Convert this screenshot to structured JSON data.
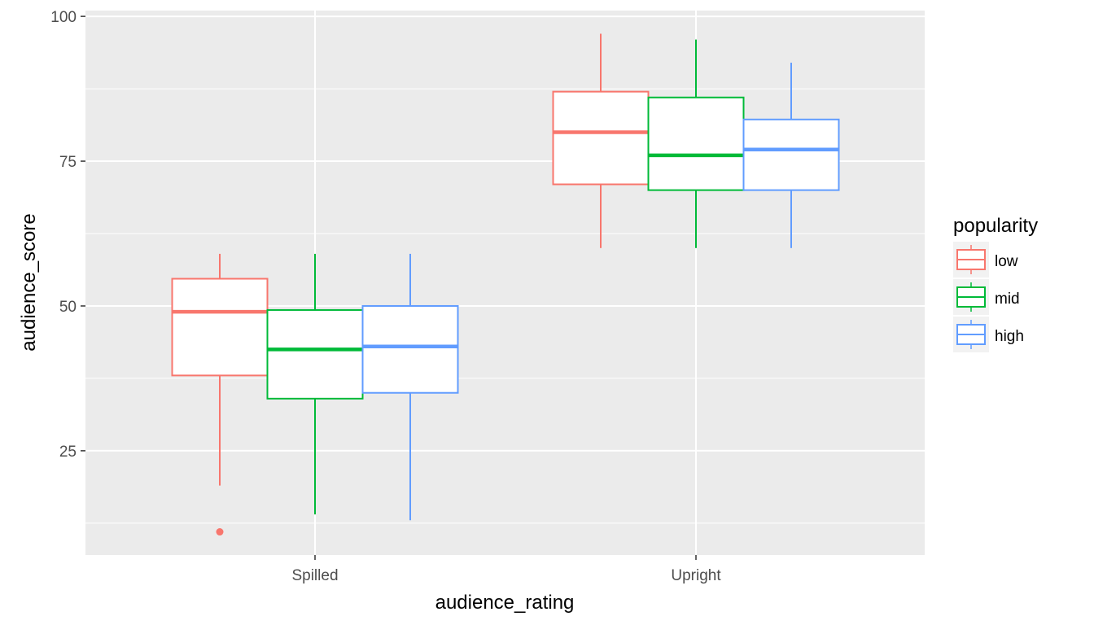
{
  "chart_data": {
    "type": "boxplot",
    "xlabel": "audience_rating",
    "ylabel": "audience_score",
    "categories": [
      "Spilled",
      "Upright"
    ],
    "ylim": [
      7,
      101
    ],
    "yticks": [
      25,
      50,
      75,
      100
    ],
    "grid": true,
    "legend": {
      "title": "popularity",
      "placement": "right"
    },
    "series": [
      {
        "name": "low",
        "color": "#F8766D",
        "boxes": [
          {
            "category": "Spilled",
            "min": 19,
            "q1": 38,
            "median": 49,
            "q3": 54.7,
            "max": 59,
            "outliers": [
              11
            ]
          },
          {
            "category": "Upright",
            "min": 60,
            "q1": 71,
            "median": 80,
            "q3": 87,
            "max": 97,
            "outliers": []
          }
        ]
      },
      {
        "name": "mid",
        "color": "#00BA38",
        "boxes": [
          {
            "category": "Spilled",
            "min": 14,
            "q1": 34,
            "median": 42.5,
            "q3": 49.3,
            "max": 59,
            "outliers": []
          },
          {
            "category": "Upright",
            "min": 60,
            "q1": 70,
            "median": 76,
            "q3": 86,
            "max": 96,
            "outliers": []
          }
        ]
      },
      {
        "name": "high",
        "color": "#619CFF",
        "boxes": [
          {
            "category": "Spilled",
            "min": 13,
            "q1": 35,
            "median": 43,
            "q3": 50,
            "max": 59,
            "outliers": []
          },
          {
            "category": "Upright",
            "min": 60,
            "q1": 70,
            "median": 77,
            "q3": 82.2,
            "max": 92,
            "outliers": []
          }
        ]
      }
    ]
  }
}
